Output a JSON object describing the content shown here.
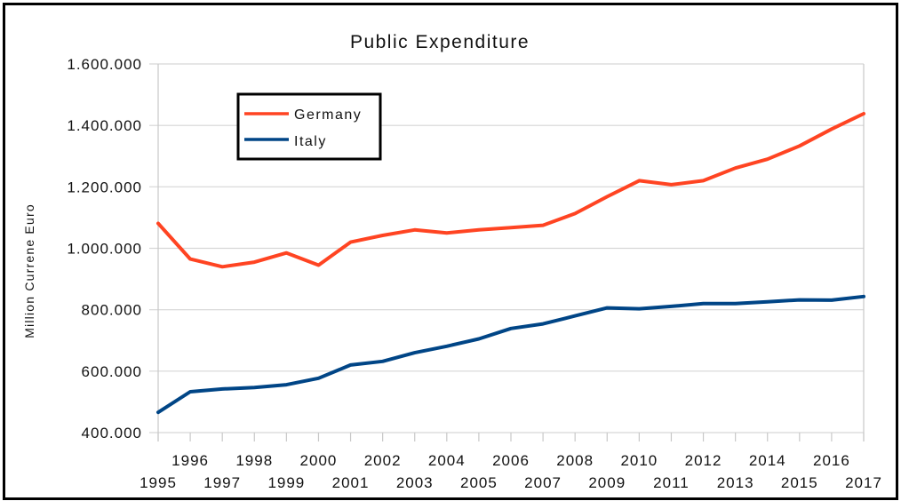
{
  "chart_data": {
    "type": "line",
    "title": "Public Expenditure",
    "xlabel": "",
    "ylabel": "Million Currene Euro",
    "ylim": [
      400000,
      1600000
    ],
    "yticks": [
      400000,
      600000,
      800000,
      1000000,
      1200000,
      1400000,
      1600000
    ],
    "ytick_labels": [
      "400.000",
      "600.000",
      "800.000",
      "1.000.000",
      "1.200.000",
      "1.400.000",
      "1.600.000"
    ],
    "x": [
      "1995",
      "1996",
      "1997",
      "1998",
      "1999",
      "2000",
      "2001",
      "2002",
      "2003",
      "2004",
      "2005",
      "2006",
      "2007",
      "2008",
      "2009",
      "2010",
      "2011",
      "2012",
      "2013",
      "2014",
      "2015",
      "2016",
      "2017"
    ],
    "grid": true,
    "legend_position": "top-left",
    "series": [
      {
        "name": "Germany",
        "color": "#ff4422",
        "values": [
          1081000,
          965000,
          940000,
          955000,
          985000,
          945000,
          1020000,
          1042000,
          1060000,
          1050000,
          1060000,
          1067000,
          1075000,
          1113000,
          1168000,
          1220000,
          1207000,
          1220000,
          1261000,
          1290000,
          1333000,
          1388000,
          1438000
        ]
      },
      {
        "name": "Italy",
        "color": "#004586",
        "values": [
          466000,
          533000,
          542000,
          547000,
          556000,
          577000,
          620000,
          632000,
          660000,
          681000,
          705000,
          739000,
          754000,
          780000,
          806000,
          803000,
          811000,
          820000,
          820000,
          826000,
          832000,
          831000,
          843000
        ]
      }
    ]
  }
}
